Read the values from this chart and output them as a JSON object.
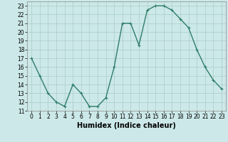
{
  "x": [
    0,
    1,
    2,
    3,
    4,
    5,
    6,
    7,
    8,
    9,
    10,
    11,
    12,
    13,
    14,
    15,
    16,
    17,
    18,
    19,
    20,
    21,
    22,
    23
  ],
  "y": [
    17,
    15,
    13,
    12,
    11.5,
    14,
    13,
    11.5,
    11.5,
    12.5,
    16,
    21,
    21,
    18.5,
    22.5,
    23,
    23,
    22.5,
    21.5,
    20.5,
    18,
    16,
    14.5,
    13.5
  ],
  "line_color": "#2e7d6b",
  "marker": "+",
  "marker_size": 3,
  "linewidth": 1.0,
  "bg_color": "#cce8e8",
  "grid_color": "#aacccc",
  "xlabel": "Humidex (Indice chaleur)",
  "xlabel_fontsize": 7,
  "ylim": [
    11,
    23.5
  ],
  "xlim": [
    -0.5,
    23.5
  ],
  "yticks": [
    11,
    12,
    13,
    14,
    15,
    16,
    17,
    18,
    19,
    20,
    21,
    22,
    23
  ],
  "xticks": [
    0,
    1,
    2,
    3,
    4,
    5,
    6,
    7,
    8,
    9,
    10,
    11,
    12,
    13,
    14,
    15,
    16,
    17,
    18,
    19,
    20,
    21,
    22,
    23
  ],
  "tick_fontsize": 5.5
}
